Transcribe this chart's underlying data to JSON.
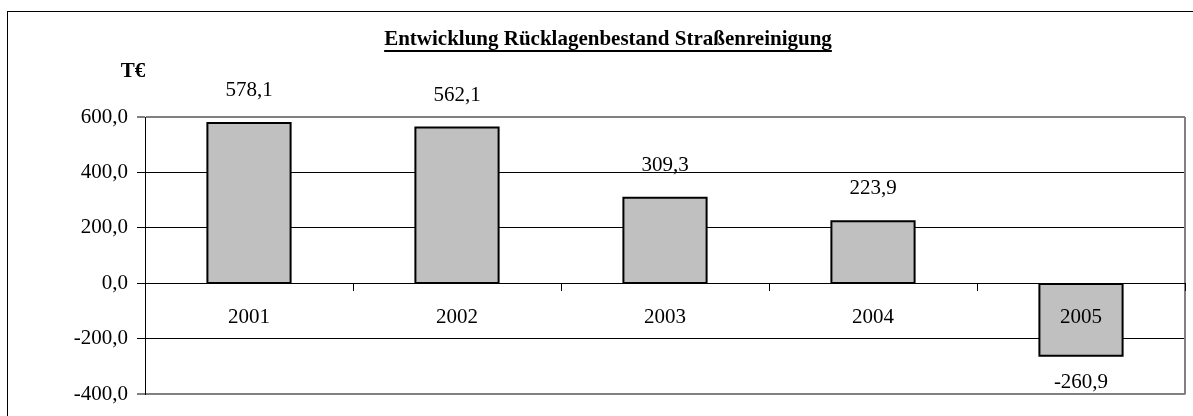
{
  "chart_data": {
    "type": "bar",
    "title": "Entwicklung Rücklagenbestand Straßenreinigung",
    "ylabel": "T€",
    "categories": [
      "2001",
      "2002",
      "2003",
      "2004",
      "2005"
    ],
    "values": [
      578.1,
      562.1,
      309.3,
      223.9,
      -260.9
    ],
    "value_labels": [
      "578,1",
      "562,1",
      "309,3",
      "223,9",
      "-260,9"
    ],
    "color": "#c0c0c0",
    "ylim": [
      -400,
      600
    ],
    "yticks": [
      {
        "value": -400,
        "label": "-400,0"
      },
      {
        "value": -200,
        "label": "-200,0"
      },
      {
        "value": 0,
        "label": "0,0"
      },
      {
        "value": 200,
        "label": "200,0"
      },
      {
        "value": 400,
        "label": "400,0"
      },
      {
        "value": 600,
        "label": "600,0"
      }
    ],
    "grid": "y"
  }
}
